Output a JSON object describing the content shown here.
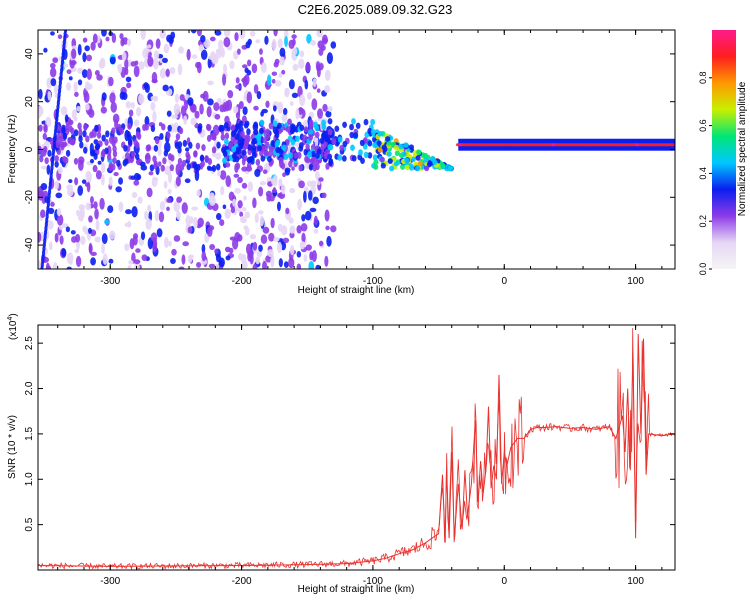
{
  "title": "C2E6.2025.089.09.32.G23",
  "colors": {
    "snr_line": "#e8332f",
    "colormap": [
      "#f5f5f5",
      "#e6d6f5",
      "#8c3be8",
      "#0a1ef0",
      "#00c8ff",
      "#00e676",
      "#c8f000",
      "#ff9800",
      "#ff1e1e",
      "#ff1a8c"
    ]
  },
  "chart_data": [
    {
      "type": "heatmap",
      "xlabel": "Height of straight line (km)",
      "ylabel": "Frequency (Hz)",
      "xlim": [
        -355,
        130
      ],
      "ylim": [
        -50,
        50
      ],
      "xticks": [
        -300,
        -200,
        -100,
        0,
        100
      ],
      "yticks": [
        -40,
        -20,
        0,
        20,
        40
      ],
      "colorbar": {
        "label": "Normalized spectral amplitude",
        "range": [
          0,
          1
        ],
        "ticks": [
          0.0,
          0.2,
          0.4,
          0.6,
          0.8
        ]
      },
      "features": [
        {
          "x_range": [
            -355,
            -130
          ],
          "freq_range": [
            -50,
            50
          ],
          "amplitude": 0.2
        },
        {
          "x_range": [
            -215,
            -95
          ],
          "freq_range": [
            -5,
            12
          ],
          "amplitude": 0.4
        },
        {
          "x_range": [
            -100,
            -40
          ],
          "freq_range": [
            -8,
            10
          ],
          "amplitude": 0.6
        },
        {
          "x_range": [
            -35,
            130
          ],
          "freq_range": [
            1,
            3
          ],
          "amplitude": 0.95
        }
      ]
    },
    {
      "type": "line",
      "xlabel": "Height of straight line (km)",
      "ylabel": "SNR (10 * v/v)",
      "yscale_label": "(x10",
      "yscale_exp": "4",
      "xlim": [
        -355,
        130
      ],
      "ylim": [
        0,
        2.7
      ],
      "xticks": [
        -300,
        -200,
        -100,
        0,
        100
      ],
      "yticks": [
        0.5,
        1.0,
        1.5,
        2.0,
        2.5
      ],
      "series": [
        {
          "x": [
            -355,
            -300,
            -200,
            -150,
            -120,
            -100,
            -90,
            -80,
            -70,
            -60,
            -55,
            -50,
            -47,
            -45,
            -44,
            -42,
            -40,
            -38,
            -35,
            -32,
            -30,
            -28,
            -25,
            -22,
            -20,
            -18,
            -16,
            -14,
            -12,
            -10,
            -8,
            -6,
            -4,
            -2,
            0,
            2,
            5,
            10,
            15,
            20,
            25,
            30,
            40,
            50,
            60,
            70,
            80,
            85,
            90,
            92,
            94,
            96,
            98,
            100,
            102,
            104,
            106,
            108,
            110,
            115,
            120,
            130
          ],
          "y": [
            0.05,
            0.04,
            0.05,
            0.06,
            0.07,
            0.1,
            0.13,
            0.18,
            0.22,
            0.3,
            0.35,
            0.4,
            1.05,
            0.3,
            1.1,
            0.35,
            1.3,
            0.35,
            0.95,
            0.45,
            1.1,
            0.6,
            0.95,
            1.65,
            0.75,
            1.2,
            0.85,
            1.1,
            1.8,
            0.9,
            1.15,
            1.0,
            2.15,
            0.95,
            1.3,
            1.15,
            1.35,
            1.45,
            1.45,
            1.55,
            1.57,
            1.57,
            1.58,
            1.56,
            1.57,
            1.55,
            1.58,
            1.45,
            1.7,
            1.3,
            2.0,
            1.1,
            2.4,
            0.35,
            2.6,
            1.5,
            2.55,
            1.05,
            1.5,
            1.49,
            1.48,
            1.5
          ]
        }
      ]
    }
  ]
}
